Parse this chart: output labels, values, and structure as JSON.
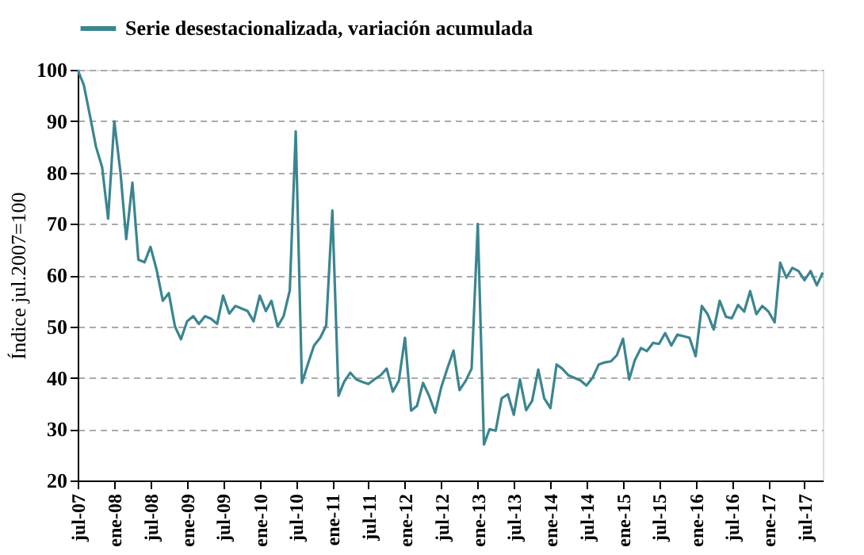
{
  "chart_data": {
    "type": "line",
    "ylabel": "Índice jul.2007=100",
    "x": [
      "2007-07",
      "2007-08",
      "2007-09",
      "2007-10",
      "2007-11",
      "2007-12",
      "2008-01",
      "2008-02",
      "2008-03",
      "2008-04",
      "2008-05",
      "2008-06",
      "2008-07",
      "2008-08",
      "2008-09",
      "2008-10",
      "2008-11",
      "2008-12",
      "2009-01",
      "2009-02",
      "2009-03",
      "2009-04",
      "2009-05",
      "2009-06",
      "2009-07",
      "2009-08",
      "2009-09",
      "2009-10",
      "2009-11",
      "2009-12",
      "2010-01",
      "2010-02",
      "2010-03",
      "2010-04",
      "2010-05",
      "2010-06",
      "2010-07",
      "2010-08",
      "2010-09",
      "2010-10",
      "2010-11",
      "2010-12",
      "2011-01",
      "2011-02",
      "2011-03",
      "2011-04",
      "2011-05",
      "2011-06",
      "2011-07",
      "2011-08",
      "2011-09",
      "2011-10",
      "2011-11",
      "2011-12",
      "2012-01",
      "2012-02",
      "2012-03",
      "2012-04",
      "2012-05",
      "2012-06",
      "2012-07",
      "2012-08",
      "2012-09",
      "2012-10",
      "2012-11",
      "2012-12",
      "2013-01",
      "2013-02",
      "2013-03",
      "2013-04",
      "2013-05",
      "2013-06",
      "2013-07",
      "2013-08",
      "2013-09",
      "2013-10",
      "2013-11",
      "2013-12",
      "2014-01",
      "2014-02",
      "2014-03",
      "2014-04",
      "2014-05",
      "2014-06",
      "2014-07",
      "2014-08",
      "2014-09",
      "2014-10",
      "2014-11",
      "2014-12",
      "2015-01",
      "2015-02",
      "2015-03",
      "2015-04",
      "2015-05",
      "2015-06",
      "2015-07",
      "2015-08",
      "2015-09",
      "2015-10",
      "2015-11",
      "2015-12",
      "2016-01",
      "2016-02",
      "2016-03",
      "2016-04",
      "2016-05",
      "2016-06",
      "2016-07",
      "2016-08",
      "2016-09",
      "2016-10",
      "2016-11",
      "2016-12",
      "2017-01",
      "2017-02",
      "2017-03",
      "2017-04",
      "2017-05",
      "2017-06",
      "2017-07",
      "2017-08",
      "2017-09",
      "2017-10"
    ],
    "series": [
      {
        "name": "Serie desestacionalizada, variación acumulada",
        "color": "#3b8590",
        "values": [
          100,
          97,
          91,
          85,
          81,
          71,
          90,
          80,
          67,
          78,
          63,
          62.5,
          65.5,
          61,
          55,
          56.5,
          50,
          47.5,
          51,
          52,
          50.5,
          52,
          51.5,
          50.5,
          56,
          52.5,
          54,
          53.5,
          53,
          51,
          56,
          53,
          55,
          50,
          52,
          57,
          88,
          39,
          42.8,
          46.3,
          47.8,
          50.2,
          72.6,
          36.5,
          39.2,
          41,
          39.7,
          39.2,
          38.8,
          39.7,
          40.5,
          41.8,
          37.3,
          39.4,
          47.8,
          33.6,
          34.5,
          39,
          36.5,
          33.2,
          38.1,
          41.8,
          45.3,
          37.6,
          39.4,
          41.8,
          70,
          27,
          30,
          29.7,
          36,
          36.8,
          32.8,
          39.7,
          33.7,
          35.5,
          41.6,
          36,
          34.1,
          42.6,
          41.8,
          40.5,
          40,
          39.5,
          38.5,
          40,
          42.6,
          43,
          43.2,
          44.4,
          47.6,
          39.7,
          43.4,
          45.8,
          45.2,
          46.8,
          46.6,
          48.7,
          46.3,
          48.4,
          48.1,
          47.8,
          44.2,
          54,
          52.4,
          49.4,
          55,
          51.9,
          51.6,
          54.2,
          52.9,
          56.9,
          52.4,
          54,
          52.9,
          50.8,
          62.4,
          59.5,
          61.4,
          60.8,
          59,
          60.8,
          58,
          60.5
        ]
      }
    ],
    "xlim": [
      "2007-07",
      "2017-10"
    ],
    "xticks": [
      {
        "value": "2007-07",
        "label": "jul-07"
      },
      {
        "value": "2008-01",
        "label": "ene-08"
      },
      {
        "value": "2008-07",
        "label": "jul-08"
      },
      {
        "value": "2009-01",
        "label": "ene-09"
      },
      {
        "value": "2009-07",
        "label": "jul-09"
      },
      {
        "value": "2010-01",
        "label": "ene-10"
      },
      {
        "value": "2010-07",
        "label": "jul-10"
      },
      {
        "value": "2011-01",
        "label": "ene-11"
      },
      {
        "value": "2011-07",
        "label": "jul-11"
      },
      {
        "value": "2012-01",
        "label": "ene-12"
      },
      {
        "value": "2012-07",
        "label": "jul-12"
      },
      {
        "value": "2013-01",
        "label": "ene-13"
      },
      {
        "value": "2013-07",
        "label": "jul-13"
      },
      {
        "value": "2014-01",
        "label": "ene-14"
      },
      {
        "value": "2014-07",
        "label": "jul-14"
      },
      {
        "value": "2015-01",
        "label": "ene-15"
      },
      {
        "value": "2015-07",
        "label": "jul-15"
      },
      {
        "value": "2016-01",
        "label": "ene-16"
      },
      {
        "value": "2016-07",
        "label": "jul-16"
      },
      {
        "value": "2017-01",
        "label": "ene-17"
      },
      {
        "value": "2017-07",
        "label": "jul-17"
      }
    ],
    "ylim": [
      20,
      100
    ],
    "yticks": [
      20,
      30,
      40,
      50,
      60,
      70,
      80,
      90,
      100
    ],
    "grid": "y",
    "legend": "top",
    "marker": "none",
    "line_style": "solid"
  }
}
